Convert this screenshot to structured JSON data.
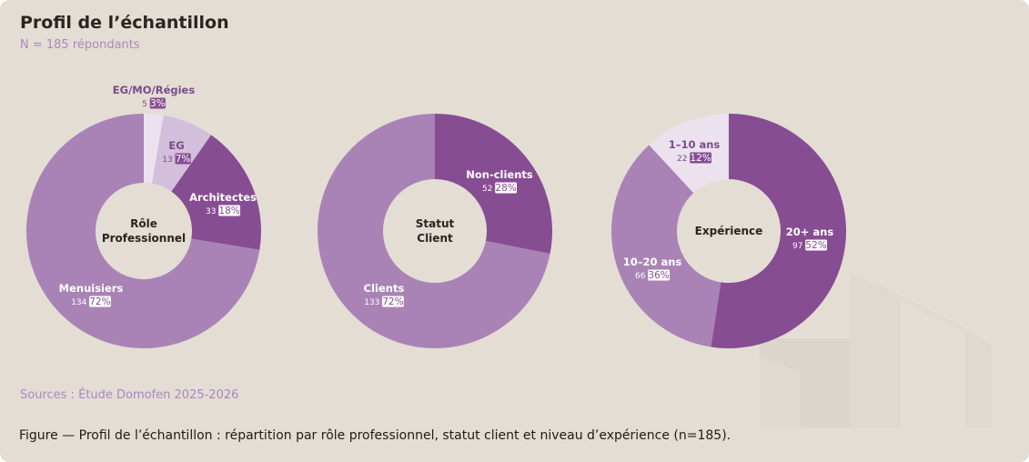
{
  "header": {
    "title": "Profil de l’échantillon",
    "subtitle": "N = 185 répondants"
  },
  "footer": {
    "sources": "Sources : Étude Domofen 2025-2026",
    "caption": "Figure — Profil de l’échantillon : répartition par rôle professionnel, statut client et niveau d’expérience (n=185)."
  },
  "colors": {
    "background": "#e4ddd4",
    "dark_purple": "#874d93",
    "mid_purple": "#a983b6",
    "light_purple": "#d3bedb",
    "lightest_purple": "#ece2ef",
    "watermark": "#d6cec6"
  },
  "chart_data": [
    {
      "type": "pie",
      "donut": true,
      "center_label": [
        "Rôle",
        "Professionnel"
      ],
      "slices": [
        {
          "label": "EG/MO/Régies",
          "count": 5,
          "percent": 3,
          "count_text": "5",
          "percent_text": "3%",
          "color": "#ece2ef"
        },
        {
          "label": "EG",
          "count": 13,
          "percent": 7,
          "count_text": "13",
          "percent_text": "7%",
          "color": "#d3bedb"
        },
        {
          "label": "Architectes",
          "count": 33,
          "percent": 18,
          "count_text": "33",
          "percent_text": "18%",
          "color": "#874d93"
        },
        {
          "label": "Menuisiers",
          "count": 134,
          "percent": 72,
          "count_text": "134",
          "percent_text": "72%",
          "color": "#a983b6"
        }
      ]
    },
    {
      "type": "pie",
      "donut": true,
      "center_label": [
        "Statut",
        "Client"
      ],
      "slices": [
        {
          "label": "Non-clients",
          "count": 52,
          "percent": 28,
          "count_text": "52",
          "percent_text": "28%",
          "color": "#874d93"
        },
        {
          "label": "Clients",
          "count": 133,
          "percent": 72,
          "count_text": "133",
          "percent_text": "72%",
          "color": "#a983b6"
        }
      ]
    },
    {
      "type": "pie",
      "donut": true,
      "center_label": [
        "Expérience"
      ],
      "slices": [
        {
          "label": "20+ ans",
          "count": 97,
          "percent": 52,
          "count_text": "97",
          "percent_text": "52%",
          "color": "#874d93"
        },
        {
          "label": "10–20 ans",
          "count": 66,
          "percent": 36,
          "count_text": "66",
          "percent_text": "36%",
          "color": "#a983b6"
        },
        {
          "label": "1–10 ans",
          "count": 22,
          "percent": 12,
          "count_text": "22",
          "percent_text": "12%",
          "color": "#ece2ef"
        }
      ]
    }
  ]
}
